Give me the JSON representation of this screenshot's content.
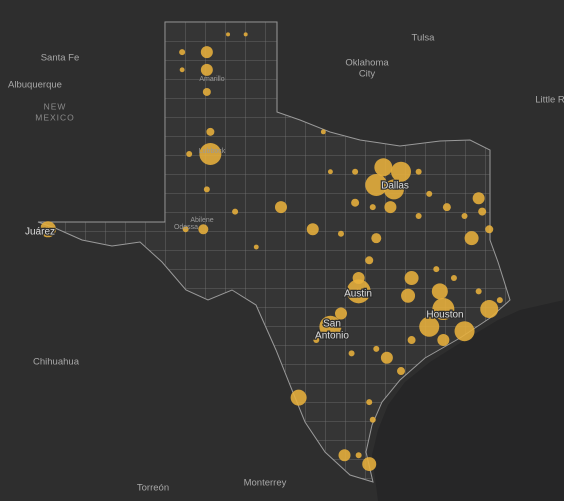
{
  "labels": [
    "Santa Fe",
    "Albuquerque",
    "NEW",
    "MEXICO",
    "Tulsa",
    "Oklahoma",
    "City",
    "Little R",
    "Juárez",
    "Chihuahua",
    "Torreón",
    "Monterrey",
    "Dallas",
    "Austin",
    "Houston",
    "San",
    "Antonio",
    "Lubbock",
    "Amarillo",
    "Abilene",
    "Odessa"
  ],
  "points": [
    {
      "lon": -102.0,
      "lat": 35.8,
      "value": 36
    },
    {
      "lon": -102.0,
      "lat": 35.4,
      "value": 36
    },
    {
      "lon": -102.7,
      "lat": 35.8,
      "value": 9
    },
    {
      "lon": -102.7,
      "lat": 35.4,
      "value": 6
    },
    {
      "lon": -101.4,
      "lat": 36.2,
      "value": 4
    },
    {
      "lon": -100.9,
      "lat": 36.2,
      "value": 4
    },
    {
      "lon": -102.0,
      "lat": 34.9,
      "value": 16
    },
    {
      "lon": -101.9,
      "lat": 33.5,
      "value": 121
    },
    {
      "lon": -101.9,
      "lat": 34.0,
      "value": 16
    },
    {
      "lon": -102.5,
      "lat": 33.5,
      "value": 9
    },
    {
      "lon": -102.0,
      "lat": 32.7,
      "value": 9
    },
    {
      "lon": -98.7,
      "lat": 34.0,
      "value": 6
    },
    {
      "lon": -98.5,
      "lat": 33.1,
      "value": 6
    },
    {
      "lon": -99.9,
      "lat": 32.3,
      "value": 36
    },
    {
      "lon": -100.6,
      "lat": 31.4,
      "value": 6
    },
    {
      "lon": -99.0,
      "lat": 31.8,
      "value": 36
    },
    {
      "lon": -102.1,
      "lat": 31.8,
      "value": 25
    },
    {
      "lon": -102.6,
      "lat": 31.8,
      "value": 9
    },
    {
      "lon": -101.2,
      "lat": 32.2,
      "value": 9
    },
    {
      "lon": -106.5,
      "lat": 31.8,
      "value": 64
    },
    {
      "lon": -97.0,
      "lat": 33.2,
      "value": 81
    },
    {
      "lon": -96.5,
      "lat": 33.1,
      "value": 100
    },
    {
      "lon": -97.2,
      "lat": 32.8,
      "value": 121
    },
    {
      "lon": -96.7,
      "lat": 32.7,
      "value": 100
    },
    {
      "lon": -97.8,
      "lat": 33.1,
      "value": 9
    },
    {
      "lon": -96.0,
      "lat": 33.1,
      "value": 9
    },
    {
      "lon": -96.8,
      "lat": 32.3,
      "value": 36
    },
    {
      "lon": -97.3,
      "lat": 32.3,
      "value": 9
    },
    {
      "lon": -97.8,
      "lat": 32.4,
      "value": 16
    },
    {
      "lon": -95.7,
      "lat": 32.6,
      "value": 9
    },
    {
      "lon": -95.2,
      "lat": 32.3,
      "value": 16
    },
    {
      "lon": -94.7,
      "lat": 32.1,
      "value": 9
    },
    {
      "lon": -94.3,
      "lat": 32.5,
      "value": 36
    },
    {
      "lon": -94.2,
      "lat": 32.2,
      "value": 16
    },
    {
      "lon": -94.0,
      "lat": 31.8,
      "value": 16
    },
    {
      "lon": -94.5,
      "lat": 31.6,
      "value": 49
    },
    {
      "lon": -96.0,
      "lat": 32.1,
      "value": 9
    },
    {
      "lon": -97.2,
      "lat": 31.6,
      "value": 25
    },
    {
      "lon": -98.2,
      "lat": 31.7,
      "value": 9
    },
    {
      "lon": -97.4,
      "lat": 31.1,
      "value": 16
    },
    {
      "lon": -97.7,
      "lat": 30.7,
      "value": 36
    },
    {
      "lon": -97.7,
      "lat": 30.4,
      "value": 144
    },
    {
      "lon": -96.2,
      "lat": 30.7,
      "value": 49
    },
    {
      "lon": -96.3,
      "lat": 30.3,
      "value": 49
    },
    {
      "lon": -95.4,
      "lat": 30.4,
      "value": 64
    },
    {
      "lon": -95.3,
      "lat": 30.0,
      "value": 121
    },
    {
      "lon": -95.7,
      "lat": 29.6,
      "value": 100
    },
    {
      "lon": -94.7,
      "lat": 29.5,
      "value": 100
    },
    {
      "lon": -94.0,
      "lat": 30.0,
      "value": 81
    },
    {
      "lon": -95.3,
      "lat": 29.3,
      "value": 36
    },
    {
      "lon": -94.3,
      "lat": 30.4,
      "value": 9
    },
    {
      "lon": -93.7,
      "lat": 30.2,
      "value": 9
    },
    {
      "lon": -98.2,
      "lat": 29.9,
      "value": 36
    },
    {
      "lon": -98.5,
      "lat": 29.6,
      "value": 121
    },
    {
      "lon": -96.9,
      "lat": 28.9,
      "value": 36
    },
    {
      "lon": -96.2,
      "lat": 29.3,
      "value": 16
    },
    {
      "lon": -96.5,
      "lat": 28.6,
      "value": 16
    },
    {
      "lon": -97.2,
      "lat": 29.1,
      "value": 9
    },
    {
      "lon": -99.4,
      "lat": 28.0,
      "value": 64
    },
    {
      "lon": -97.4,
      "lat": 27.9,
      "value": 9
    },
    {
      "lon": -97.3,
      "lat": 27.5,
      "value": 9
    },
    {
      "lon": -98.1,
      "lat": 26.7,
      "value": 36
    },
    {
      "lon": -97.4,
      "lat": 26.5,
      "value": 49
    },
    {
      "lon": -97.7,
      "lat": 26.7,
      "value": 9
    },
    {
      "lon": -98.9,
      "lat": 29.3,
      "value": 9
    },
    {
      "lon": -97.9,
      "lat": 29.0,
      "value": 9
    },
    {
      "lon": -95.5,
      "lat": 30.9,
      "value": 9
    },
    {
      "lon": -95.0,
      "lat": 30.7,
      "value": 9
    }
  ],
  "point_color": "#e8b13c"
}
